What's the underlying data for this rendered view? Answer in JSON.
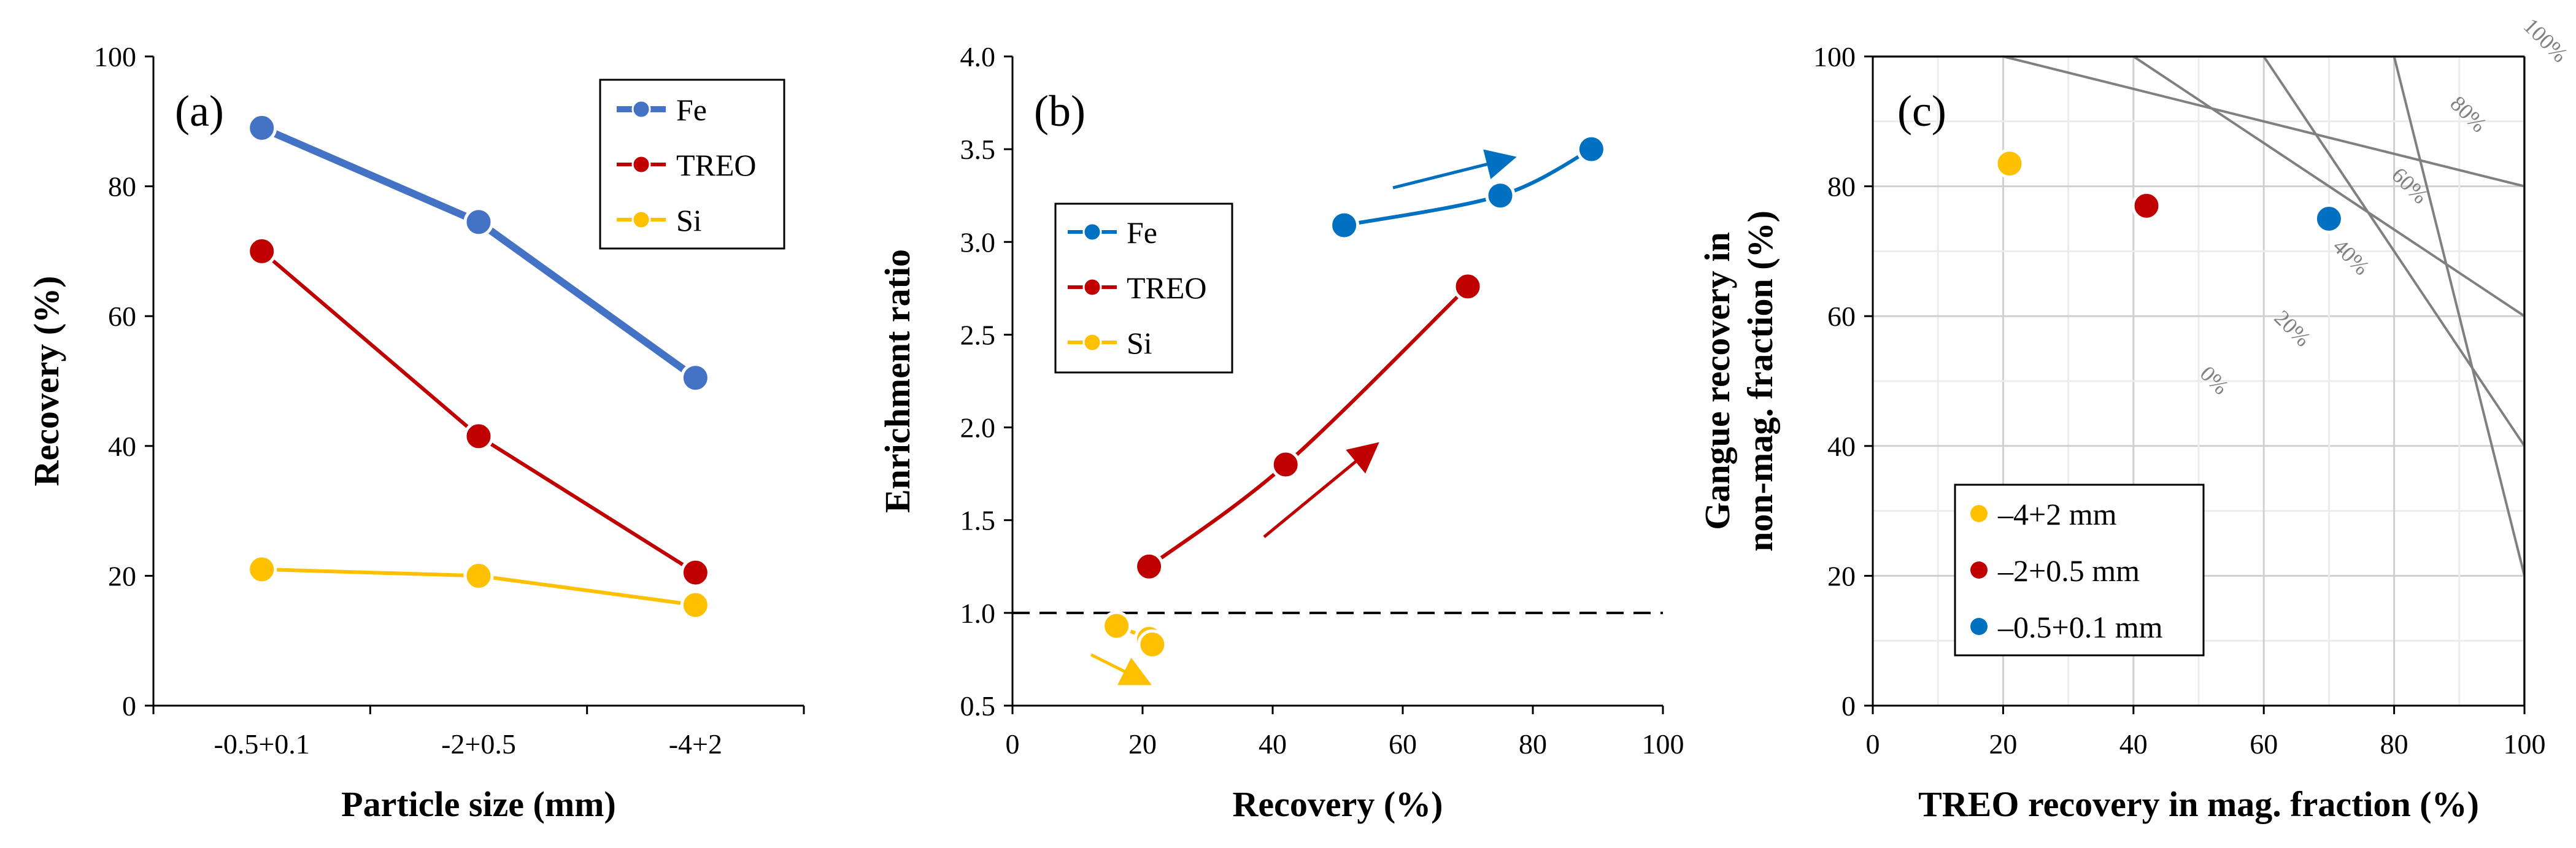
{
  "chart_data": [
    {
      "panel_label": "(a)",
      "type": "line",
      "xlabel": "Particle size (mm)",
      "ylabel": "Recovery (%)",
      "categories": [
        "-0.5+0.1",
        "-2+0.5",
        "-4+2"
      ],
      "ylim": [
        0,
        100
      ],
      "yticks": [
        0,
        20,
        40,
        60,
        80,
        100
      ],
      "legend_position": "top-right",
      "series": [
        {
          "name": "Fe",
          "color": "#4472C4",
          "values": [
            89,
            74.5,
            50.5
          ]
        },
        {
          "name": "TREO",
          "color": "#C00000",
          "values": [
            70,
            41.5,
            20.5
          ]
        },
        {
          "name": "Si",
          "color": "#FFC000",
          "values": [
            21,
            20,
            15.5
          ]
        }
      ]
    },
    {
      "panel_label": "(b)",
      "type": "scatter",
      "xlabel": "Recovery (%)",
      "ylabel": "Enrichment ratio",
      "xlim": [
        0,
        100
      ],
      "ylim": [
        0.5,
        4.0
      ],
      "xticks": [
        0,
        20,
        40,
        60,
        80,
        100
      ],
      "yticks": [
        "0.5",
        "1.0",
        "1.5",
        "2.0",
        "2.5",
        "3.0",
        "3.5",
        "4.0"
      ],
      "reference_line_y": 1.0,
      "legend_position": "center-left",
      "series": [
        {
          "name": "Fe",
          "color": "#0070C0",
          "points": [
            [
              51,
              3.09
            ],
            [
              75,
              3.25
            ],
            [
              89,
              3.5
            ]
          ]
        },
        {
          "name": "TREO",
          "color": "#C00000",
          "points": [
            [
              21,
              1.25
            ],
            [
              42,
              1.8
            ],
            [
              70,
              2.76
            ]
          ]
        },
        {
          "name": "Si",
          "color": "#FFC000",
          "points": [
            [
              16,
              0.93
            ],
            [
              21,
              0.86
            ],
            [
              21.5,
              0.83
            ]
          ]
        }
      ]
    },
    {
      "panel_label": "(c)",
      "type": "scatter",
      "xlabel": "TREO recovery in mag. fraction (%)",
      "ylabel_line1": "Gangue recovery in",
      "ylabel_line2": "non-mag. fraction (%)",
      "xlim": [
        0,
        100
      ],
      "ylim": [
        0,
        100
      ],
      "xticks": [
        0,
        20,
        40,
        60,
        80,
        100
      ],
      "yticks": [
        0,
        20,
        40,
        60,
        80,
        100
      ],
      "grid": true,
      "legend_position": "bottom-left",
      "diagonals": [
        {
          "label": "0%",
          "offset": 0
        },
        {
          "label": "20%",
          "offset": 20
        },
        {
          "label": "40%",
          "offset": 40
        },
        {
          "label": "60%",
          "offset": 60
        },
        {
          "label": "80%",
          "offset": 80
        },
        {
          "label": "100%",
          "offset": 100
        }
      ],
      "series": [
        {
          "name": "–4+2 mm",
          "color": "#FFC000",
          "points": [
            [
              21,
              83.5
            ]
          ]
        },
        {
          "name": "–2+0.5 mm",
          "color": "#C00000",
          "points": [
            [
              42,
              77
            ]
          ]
        },
        {
          "name": "–0.5+0.1 mm",
          "color": "#0070C0",
          "points": [
            [
              70,
              75
            ]
          ]
        }
      ]
    }
  ]
}
